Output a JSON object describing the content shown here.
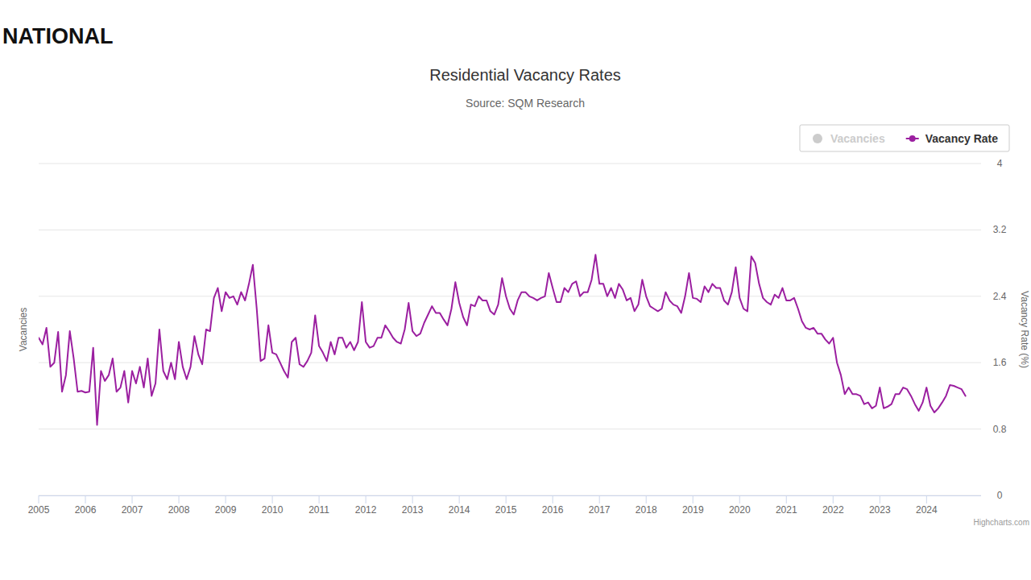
{
  "chart_data": {
    "type": "line",
    "heading": "NATIONAL",
    "title": "Residential Vacancy Rates",
    "subtitle": "Source: SQM Research",
    "credits": "Highcharts.com",
    "y_label": "Vacancies",
    "y2_label": "Vacancy Rate (%)",
    "legend": "top-right",
    "grid": true,
    "y2lim": [
      0,
      4
    ],
    "y2ticks": [
      0,
      0.8,
      1.6,
      2.4,
      3.2,
      4
    ],
    "categories": [
      "2005",
      null,
      null,
      null,
      null,
      null,
      null,
      null,
      null,
      null,
      null,
      null,
      "2006",
      null,
      null,
      null,
      null,
      null,
      null,
      null,
      null,
      null,
      null,
      null,
      "2007",
      null,
      null,
      null,
      null,
      null,
      null,
      null,
      null,
      null,
      null,
      null,
      "2008",
      null,
      null,
      null,
      null,
      null,
      null,
      null,
      null,
      null,
      null,
      null,
      "2009",
      null,
      null,
      null,
      null,
      null,
      null,
      null,
      null,
      null,
      null,
      null,
      "2010",
      null,
      null,
      null,
      null,
      null,
      null,
      null,
      null,
      null,
      null,
      null,
      "2011",
      null,
      null,
      null,
      null,
      null,
      null,
      null,
      null,
      null,
      null,
      null,
      "2012",
      null,
      null,
      null,
      null,
      null,
      null,
      null,
      null,
      null,
      null,
      null,
      "2013",
      null,
      null,
      null,
      null,
      null,
      null,
      null,
      null,
      null,
      null,
      null,
      "2014",
      null,
      null,
      null,
      null,
      null,
      null,
      null,
      null,
      null,
      null,
      null,
      "2015",
      null,
      null,
      null,
      null,
      null,
      null,
      null,
      null,
      null,
      null,
      null,
      "2016",
      null,
      null,
      null,
      null,
      null,
      null,
      null,
      null,
      null,
      null,
      null,
      "2017",
      null,
      null,
      null,
      null,
      null,
      null,
      null,
      null,
      null,
      null,
      null,
      "2018",
      null,
      null,
      null,
      null,
      null,
      null,
      null,
      null,
      null,
      null,
      null,
      "2019",
      null,
      null,
      null,
      null,
      null,
      null,
      null,
      null,
      null,
      null,
      null,
      "2020",
      null,
      null,
      null,
      null,
      null,
      null,
      null,
      null,
      null,
      null,
      null,
      "2021",
      null,
      null,
      null,
      null,
      null,
      null,
      null,
      null,
      null,
      null,
      null,
      "2022",
      null,
      null,
      null,
      null,
      null,
      null,
      null,
      null,
      null,
      null,
      null,
      "2023",
      null,
      null,
      null,
      null,
      null,
      null,
      null,
      null,
      null,
      null,
      null,
      "2024",
      null,
      null,
      null,
      null,
      null,
      null,
      null,
      null,
      null,
      null
    ],
    "series": [
      {
        "name": "Vacancies",
        "color": "#cccccc",
        "values": [
          null,
          null,
          null,
          null,
          null,
          null,
          null,
          null,
          null,
          null,
          null,
          null,
          null,
          null,
          null,
          null,
          null,
          null,
          null,
          null,
          null,
          null,
          null,
          null,
          null,
          null,
          null,
          null,
          null,
          null,
          null,
          null,
          null,
          null,
          null,
          null,
          null,
          null,
          null,
          null,
          null,
          null,
          null,
          null,
          null,
          null,
          null,
          null,
          null,
          null,
          null,
          null,
          null,
          null,
          null,
          null,
          null,
          null,
          null,
          null,
          null,
          null,
          null,
          null,
          null,
          null,
          null,
          null,
          null,
          null,
          null,
          null,
          null,
          null,
          null,
          null,
          null,
          null,
          null,
          null,
          null,
          null,
          null,
          null,
          null,
          null,
          null,
          null,
          null,
          null,
          null,
          null,
          null,
          null,
          null,
          null,
          null,
          null,
          null,
          null,
          null,
          null,
          null,
          null,
          null,
          null,
          null,
          null,
          null,
          null,
          null,
          null,
          null,
          null,
          null,
          null,
          null,
          null,
          null,
          null,
          null,
          null,
          null,
          null,
          null,
          null,
          null,
          null,
          null,
          null,
          null,
          null,
          null,
          null,
          null,
          null,
          null,
          null,
          null,
          null,
          null,
          null,
          null,
          null,
          null,
          null,
          null,
          null,
          null,
          null,
          null,
          null,
          null,
          null,
          null,
          null,
          null,
          null,
          null,
          null,
          null,
          null,
          null,
          null,
          null,
          null,
          null,
          null,
          null,
          null,
          null,
          null,
          null,
          null,
          null,
          null,
          null,
          null,
          null,
          null,
          null,
          null,
          null,
          null,
          null,
          null,
          null,
          null,
          null,
          null,
          null,
          null,
          null,
          null,
          null,
          null,
          null,
          null,
          null,
          null,
          null,
          null,
          null,
          null,
          null,
          null,
          null,
          null,
          null,
          null,
          null,
          null,
          null,
          null,
          null,
          null,
          null,
          null,
          null,
          null,
          null,
          null,
          null,
          null,
          null,
          null,
          null,
          null,
          null,
          null,
          null,
          null,
          null,
          null,
          null,
          null,
          null,
          null,
          null
        ]
      },
      {
        "name": "Vacancy Rate",
        "color": "#9b1fa0",
        "axis": "y2",
        "values": [
          1.9,
          1.82,
          2.02,
          1.55,
          1.6,
          1.97,
          1.25,
          1.45,
          1.98,
          1.65,
          1.25,
          1.26,
          1.24,
          1.25,
          1.78,
          0.85,
          1.5,
          1.38,
          1.45,
          1.65,
          1.25,
          1.3,
          1.5,
          1.12,
          1.5,
          1.35,
          1.55,
          1.3,
          1.65,
          1.2,
          1.35,
          2.0,
          1.5,
          1.4,
          1.6,
          1.4,
          1.85,
          1.55,
          1.4,
          1.55,
          1.92,
          1.7,
          1.58,
          2.0,
          1.98,
          2.38,
          2.5,
          2.22,
          2.45,
          2.38,
          2.4,
          2.3,
          2.45,
          2.35,
          2.55,
          2.78,
          2.25,
          1.62,
          1.65,
          2.05,
          1.72,
          1.7,
          1.6,
          1.5,
          1.42,
          1.85,
          1.9,
          1.58,
          1.55,
          1.62,
          1.72,
          2.17,
          1.8,
          1.72,
          1.62,
          1.85,
          1.7,
          1.9,
          1.9,
          1.78,
          1.85,
          1.75,
          1.85,
          2.33,
          1.85,
          1.78,
          1.8,
          1.9,
          1.9,
          2.05,
          1.98,
          1.9,
          1.85,
          1.83,
          2.0,
          2.32,
          1.98,
          1.92,
          1.95,
          2.08,
          2.18,
          2.28,
          2.2,
          2.2,
          2.12,
          2.05,
          2.25,
          2.57,
          2.32,
          2.15,
          2.05,
          2.3,
          2.28,
          2.4,
          2.35,
          2.35,
          2.22,
          2.18,
          2.3,
          2.62,
          2.4,
          2.25,
          2.18,
          2.35,
          2.45,
          2.45,
          2.4,
          2.38,
          2.35,
          2.38,
          2.4,
          2.68,
          2.5,
          2.33,
          2.33,
          2.5,
          2.45,
          2.55,
          2.58,
          2.4,
          2.45,
          2.45,
          2.6,
          2.9,
          2.55,
          2.55,
          2.4,
          2.5,
          2.38,
          2.55,
          2.48,
          2.35,
          2.38,
          2.22,
          2.3,
          2.6,
          2.4,
          2.28,
          2.25,
          2.22,
          2.25,
          2.45,
          2.35,
          2.3,
          2.28,
          2.2,
          2.4,
          2.68,
          2.38,
          2.37,
          2.33,
          2.52,
          2.45,
          2.55,
          2.5,
          2.5,
          2.35,
          2.3,
          2.45,
          2.75,
          2.38,
          2.25,
          2.22,
          2.88,
          2.8,
          2.55,
          2.38,
          2.33,
          2.3,
          2.42,
          2.38,
          2.5,
          2.35,
          2.35,
          2.38,
          2.25,
          2.1,
          2.02,
          2.0,
          2.02,
          1.95,
          1.95,
          1.88,
          1.83,
          1.9,
          1.6,
          1.45,
          1.22,
          1.3,
          1.22,
          1.22,
          1.2,
          1.1,
          1.12,
          1.05,
          1.08,
          1.3,
          1.05,
          1.07,
          1.1,
          1.22,
          1.22,
          1.3,
          1.28,
          1.2,
          1.1,
          1.02,
          1.12,
          1.3,
          1.08,
          1.0,
          1.05,
          1.12,
          1.2,
          1.33,
          1.32,
          1.3,
          1.28,
          1.2
        ]
      }
    ]
  }
}
